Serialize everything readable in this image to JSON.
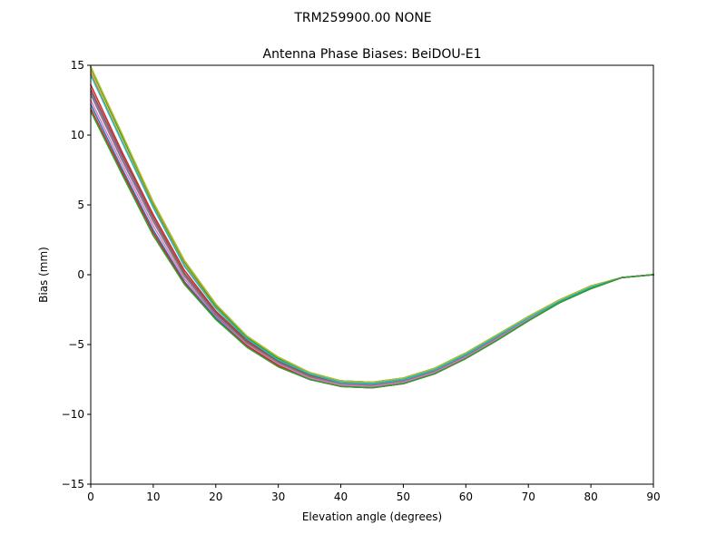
{
  "figure": {
    "suptitle": "TRM259900.00    NONE"
  },
  "chart_data": {
    "type": "line",
    "title": "Antenna Phase Biases: BeiDOU-E1",
    "xlabel": "Elevation angle (degrees)",
    "ylabel": "Bias (mm)",
    "xlim": [
      0,
      90
    ],
    "ylim": [
      -15,
      15
    ],
    "xticks": [
      0,
      10,
      20,
      30,
      40,
      50,
      60,
      70,
      80,
      90
    ],
    "yticks": [
      -15,
      -10,
      -5,
      0,
      5,
      10,
      15
    ],
    "xtick_labels": [
      "0",
      "10",
      "20",
      "30",
      "40",
      "50",
      "60",
      "70",
      "80",
      "90"
    ],
    "ytick_labels": [
      "−15",
      "−10",
      "−5",
      "0",
      "5",
      "10",
      "15"
    ],
    "grid": false,
    "legend": "none",
    "x": [
      0,
      5,
      10,
      15,
      20,
      25,
      30,
      35,
      40,
      45,
      50,
      55,
      60,
      65,
      70,
      75,
      80,
      85,
      90
    ],
    "series": [
      {
        "color": "#1f77b4",
        "values": [
          14.9,
          10.0,
          5.2,
          1.0,
          -2.1,
          -4.4,
          -5.9,
          -7.0,
          -7.6,
          -7.7,
          -7.4,
          -6.7,
          -5.6,
          -4.3,
          -3.0,
          -1.8,
          -0.8,
          -0.2,
          0.0
        ]
      },
      {
        "color": "#ff7f0e",
        "values": [
          14.5,
          9.6,
          4.9,
          0.7,
          -2.3,
          -4.5,
          -6.0,
          -7.1,
          -7.6,
          -7.8,
          -7.5,
          -6.8,
          -5.7,
          -4.4,
          -3.1,
          -1.9,
          -0.9,
          -0.2,
          0.0
        ]
      },
      {
        "color": "#2ca02c",
        "values": [
          14.8,
          9.9,
          5.1,
          0.9,
          -2.2,
          -4.5,
          -6.0,
          -7.0,
          -7.6,
          -7.7,
          -7.4,
          -6.7,
          -5.6,
          -4.3,
          -3.0,
          -1.8,
          -0.8,
          -0.2,
          0.0
        ]
      },
      {
        "color": "#d62728",
        "values": [
          13.6,
          8.8,
          4.3,
          0.3,
          -2.6,
          -4.7,
          -6.2,
          -7.2,
          -7.8,
          -7.9,
          -7.6,
          -6.9,
          -5.8,
          -4.5,
          -3.1,
          -1.9,
          -0.9,
          -0.2,
          0.0
        ]
      },
      {
        "color": "#9467bd",
        "values": [
          13.1,
          8.4,
          3.9,
          0.0,
          -2.8,
          -4.8,
          -6.3,
          -7.3,
          -7.9,
          -8.0,
          -7.7,
          -7.0,
          -5.9,
          -4.6,
          -3.2,
          -2.0,
          -0.9,
          -0.2,
          0.0
        ]
      },
      {
        "color": "#8c564b",
        "values": [
          13.3,
          8.6,
          4.1,
          0.1,
          -2.7,
          -4.8,
          -6.2,
          -7.2,
          -7.8,
          -7.9,
          -7.6,
          -6.9,
          -5.8,
          -4.5,
          -3.1,
          -1.9,
          -0.9,
          -0.2,
          0.0
        ]
      },
      {
        "color": "#e377c2",
        "values": [
          12.5,
          7.9,
          3.5,
          -0.3,
          -3.0,
          -5.0,
          -6.4,
          -7.4,
          -7.9,
          -8.0,
          -7.7,
          -7.0,
          -5.9,
          -4.6,
          -3.2,
          -2.0,
          -0.9,
          -0.2,
          0.0
        ]
      },
      {
        "color": "#7f7f7f",
        "values": [
          12.9,
          8.2,
          3.8,
          -0.1,
          -2.9,
          -4.9,
          -6.3,
          -7.3,
          -7.8,
          -7.9,
          -7.6,
          -6.9,
          -5.8,
          -4.5,
          -3.1,
          -1.9,
          -0.9,
          -0.2,
          0.0
        ]
      },
      {
        "color": "#bcbd22",
        "values": [
          14.9,
          10.1,
          5.2,
          1.0,
          -2.1,
          -4.4,
          -5.9,
          -7.0,
          -7.6,
          -7.7,
          -7.4,
          -6.7,
          -5.6,
          -4.3,
          -3.0,
          -1.8,
          -0.8,
          -0.2,
          0.0
        ]
      },
      {
        "color": "#17becf",
        "values": [
          14.3,
          9.5,
          4.8,
          0.6,
          -2.4,
          -4.6,
          -6.1,
          -7.1,
          -7.7,
          -7.8,
          -7.5,
          -6.8,
          -5.7,
          -4.4,
          -3.1,
          -1.9,
          -0.9,
          -0.2,
          0.0
        ]
      },
      {
        "color": "#1f77b4",
        "values": [
          12.2,
          7.6,
          3.2,
          -0.5,
          -3.1,
          -5.1,
          -6.5,
          -7.5,
          -8.0,
          -8.1,
          -7.8,
          -7.1,
          -6.0,
          -4.7,
          -3.3,
          -2.0,
          -1.0,
          -0.2,
          0.0
        ]
      },
      {
        "color": "#d62728",
        "values": [
          11.9,
          7.4,
          3.0,
          -0.6,
          -3.2,
          -5.1,
          -6.5,
          -7.5,
          -8.0,
          -8.1,
          -7.8,
          -7.1,
          -6.0,
          -4.7,
          -3.3,
          -2.0,
          -1.0,
          -0.2,
          0.0
        ]
      },
      {
        "color": "#2ca02c",
        "values": [
          11.7,
          7.2,
          2.8,
          -0.7,
          -3.2,
          -5.2,
          -6.6,
          -7.5,
          -8.0,
          -8.1,
          -7.8,
          -7.1,
          -6.0,
          -4.7,
          -3.3,
          -2.0,
          -1.0,
          -0.2,
          0.0
        ]
      }
    ]
  }
}
